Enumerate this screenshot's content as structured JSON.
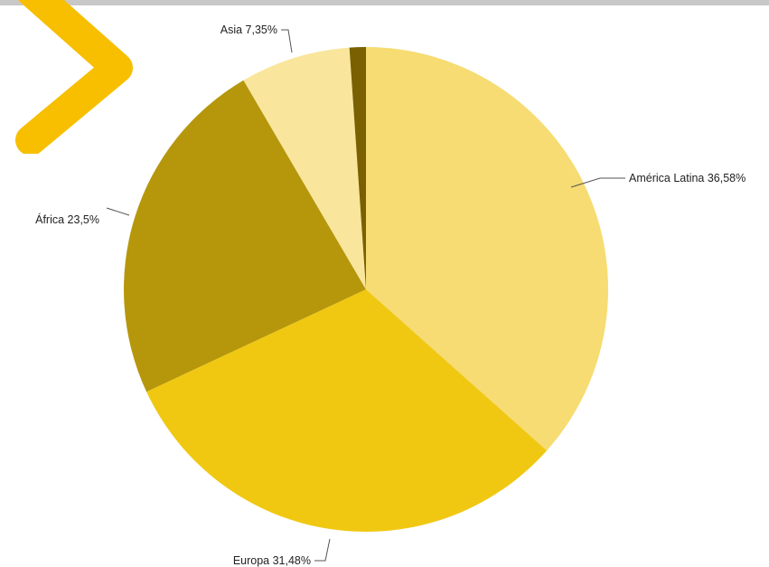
{
  "colors": {
    "brand_accent": "#f7bf00",
    "top_bar": "#c8c8c8"
  },
  "brand_icon": "chevron-right-icon",
  "chart_data": {
    "type": "pie",
    "title": "",
    "unit": "%",
    "start_angle_deg": 0,
    "direction": "clockwise",
    "slices": [
      {
        "label": "América Latina 36,58%",
        "category": "América Latina",
        "value": 36.58,
        "color": "#f6dc72"
      },
      {
        "label": "Europa 31,48%",
        "category": "Europa",
        "value": 31.48,
        "color": "#f0c812"
      },
      {
        "label": "África 23,5%",
        "category": "África",
        "value": 23.5,
        "color": "#b6970c"
      },
      {
        "label": "Asia 7,35%",
        "category": "Asia",
        "value": 7.35,
        "color": "#f9e69c"
      },
      {
        "label": "",
        "category": "",
        "value": 1.09,
        "color": "#7a6000"
      }
    ]
  }
}
